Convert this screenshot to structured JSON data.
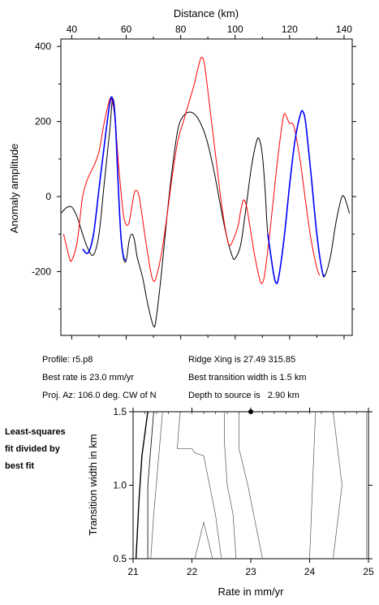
{
  "info": {
    "profile": "Profile: r5.p8",
    "best_rate": "Best rate is 23.0 mm/yr",
    "proj_az": "Proj. Az: 106.0 deg. CW of N",
    "ridge_xing": "Ridge Xing is 27.49 315.85",
    "best_width": "Best transition width is 1.5 km",
    "depth": "Depth to source is   2.90 km"
  },
  "note": [
    "Least-squares",
    "fit divided by",
    "best fit"
  ],
  "chart_data": [
    {
      "type": "line",
      "xlabel": "Distance (km)",
      "ylabel": "Anomaly amplitude",
      "xlim": [
        36,
        143
      ],
      "ylim": [
        -370,
        420
      ],
      "xticks": [
        40,
        60,
        80,
        100,
        120,
        140
      ],
      "yticks": [
        -200,
        0,
        200,
        400
      ],
      "series": [
        {
          "color": "#000000",
          "points": [
            [
              36,
              -45
            ],
            [
              38,
              -30
            ],
            [
              40,
              -28
            ],
            [
              42,
              -55
            ],
            [
              44,
              -100
            ],
            [
              46,
              -140
            ],
            [
              48,
              -155
            ],
            [
              50,
              -100
            ],
            [
              52,
              40
            ],
            [
              54,
              180
            ],
            [
              55,
              260
            ],
            [
              56,
              210
            ],
            [
              57,
              40
            ],
            [
              58,
              -100
            ],
            [
              59,
              -165
            ],
            [
              60,
              -170
            ],
            [
              61,
              -120
            ],
            [
              62,
              -100
            ],
            [
              63,
              -115
            ],
            [
              64,
              -160
            ],
            [
              66,
              -215
            ],
            [
              68,
              -290
            ],
            [
              70,
              -345
            ],
            [
              71,
              -325
            ],
            [
              73,
              -200
            ],
            [
              75,
              -50
            ],
            [
              77,
              80
            ],
            [
              79,
              180
            ],
            [
              81,
              215
            ],
            [
              83,
              225
            ],
            [
              85,
              220
            ],
            [
              87,
              200
            ],
            [
              89,
              165
            ],
            [
              91,
              110
            ],
            [
              93,
              40
            ],
            [
              95,
              -40
            ],
            [
              97,
              -110
            ],
            [
              99,
              -160
            ],
            [
              100,
              -165
            ],
            [
              102,
              -130
            ],
            [
              104,
              -30
            ],
            [
              106,
              80
            ],
            [
              108,
              150
            ],
            [
              109,
              150
            ],
            [
              110,
              110
            ],
            [
              111,
              20
            ],
            [
              112,
              -100
            ],
            [
              114,
              -200
            ],
            [
              115,
              -230
            ],
            [
              116,
              -215
            ],
            [
              118,
              -110
            ],
            [
              120,
              30
            ],
            [
              122,
              150
            ],
            [
              124,
              220
            ],
            [
              125,
              225
            ],
            [
              126,
              190
            ],
            [
              128,
              50
            ],
            [
              130,
              -100
            ],
            [
              132,
              -200
            ],
            [
              133,
              -210
            ],
            [
              135,
              -160
            ],
            [
              137,
              -70
            ],
            [
              139,
              -5
            ],
            [
              140,
              0
            ],
            [
              141,
              -20
            ],
            [
              142,
              -45
            ]
          ]
        },
        {
          "color": "#ff0000",
          "points": [
            [
              37,
              -100
            ],
            [
              39,
              -160
            ],
            [
              40,
              -170
            ],
            [
              42,
              -120
            ],
            [
              44,
              0
            ],
            [
              46,
              50
            ],
            [
              48,
              80
            ],
            [
              50,
              120
            ],
            [
              52,
              200
            ],
            [
              54,
              260
            ],
            [
              55,
              250
            ],
            [
              56,
              200
            ],
            [
              57,
              100
            ],
            [
              58,
              20
            ],
            [
              59,
              -50
            ],
            [
              60,
              -75
            ],
            [
              61,
              -70
            ],
            [
              62,
              -30
            ],
            [
              63,
              10
            ],
            [
              64,
              15
            ],
            [
              65,
              -10
            ],
            [
              67,
              -110
            ],
            [
              69,
              -200
            ],
            [
              70,
              -225
            ],
            [
              71,
              -215
            ],
            [
              73,
              -150
            ],
            [
              75,
              -50
            ],
            [
              77,
              60
            ],
            [
              79,
              150
            ],
            [
              81,
              200
            ],
            [
              83,
              250
            ],
            [
              85,
              300
            ],
            [
              87,
              360
            ],
            [
              88,
              370
            ],
            [
              89,
              340
            ],
            [
              91,
              220
            ],
            [
              93,
              100
            ],
            [
              95,
              -20
            ],
            [
              97,
              -110
            ],
            [
              98,
              -130
            ],
            [
              99,
              -120
            ],
            [
              101,
              -80
            ],
            [
              102,
              -40
            ],
            [
              103,
              -10
            ],
            [
              104,
              -20
            ],
            [
              105,
              -60
            ],
            [
              107,
              -150
            ],
            [
              109,
              -220
            ],
            [
              110,
              -230
            ],
            [
              111,
              -200
            ],
            [
              113,
              -80
            ],
            [
              115,
              60
            ],
            [
              117,
              180
            ],
            [
              118,
              220
            ],
            [
              119,
              210
            ],
            [
              120,
              195
            ],
            [
              121,
              195
            ],
            [
              122,
              175
            ],
            [
              124,
              90
            ],
            [
              126,
              -20
            ],
            [
              128,
              -120
            ],
            [
              130,
              -190
            ],
            [
              131,
              -210
            ]
          ]
        },
        {
          "color": "#0000ff",
          "points": [
            [
              44,
              -140
            ],
            [
              46,
              -150
            ],
            [
              48,
              -100
            ],
            [
              50,
              20
            ],
            [
              52,
              140
            ],
            [
              54,
              250
            ],
            [
              55,
              260
            ],
            [
              56,
              200
            ],
            [
              57,
              40
            ],
            [
              58,
              -100
            ],
            [
              59,
              -160
            ],
            [
              60,
              -170
            ],
            [
              112,
              -100
            ],
            [
              114,
              -200
            ],
            [
              115,
              -230
            ],
            [
              116,
              -215
            ],
            [
              118,
              -110
            ],
            [
              120,
              30
            ],
            [
              122,
              150
            ],
            [
              124,
              220
            ],
            [
              125,
              225
            ],
            [
              126,
              190
            ],
            [
              128,
              50
            ],
            [
              130,
              -100
            ],
            [
              132,
              -200
            ],
            [
              133,
              -210
            ]
          ]
        }
      ]
    },
    {
      "type": "contour",
      "xlabel": "Rate in mm/yr",
      "ylabel": "Transition width in km",
      "xlim": [
        21,
        25
      ],
      "ylim": [
        0.5,
        1.5
      ],
      "xticks": [
        21,
        22,
        23,
        24,
        25
      ],
      "yticks": [
        0.5,
        1.0,
        1.5
      ],
      "best_fit": [
        23.0,
        1.5
      ],
      "contours": [
        {
          "color": "#000000",
          "width": 1.4,
          "points": [
            [
              21.25,
              1.5
            ],
            [
              21.15,
              1.2
            ],
            [
              21.1,
              0.9
            ],
            [
              21.05,
              0.5
            ]
          ]
        },
        {
          "color": "#000000",
          "width": 0.8,
          "points": [
            [
              21.35,
              1.5
            ],
            [
              21.25,
              1.0
            ],
            [
              21.25,
              0.5
            ]
          ]
        },
        {
          "color": "#555555",
          "width": 0.7,
          "points": [
            [
              21.5,
              1.5
            ],
            [
              21.35,
              0.8
            ],
            [
              21.3,
              0.5
            ]
          ]
        },
        {
          "color": "#555555",
          "width": 0.7,
          "points": [
            [
              21.8,
              1.5
            ],
            [
              21.75,
              1.25
            ],
            [
              22.0,
              1.25
            ],
            [
              22.05,
              1.22
            ],
            [
              22.2,
              1.2
            ],
            [
              22.4,
              0.8
            ],
            [
              22.5,
              0.5
            ]
          ]
        },
        {
          "color": "#555555",
          "width": 0.7,
          "points": [
            [
              22.05,
              0.5
            ],
            [
              22.2,
              0.75
            ],
            [
              22.35,
              0.5
            ]
          ]
        },
        {
          "color": "#555555",
          "width": 0.7,
          "points": [
            [
              22.55,
              1.5
            ],
            [
              22.55,
              1.3
            ],
            [
              22.6,
              1.0
            ],
            [
              22.7,
              0.8
            ],
            [
              22.75,
              0.5
            ]
          ]
        },
        {
          "color": "#555555",
          "width": 0.7,
          "points": [
            [
              22.8,
              1.5
            ],
            [
              22.8,
              1.25
            ],
            [
              22.95,
              1.0
            ],
            [
              23.05,
              0.8
            ],
            [
              23.2,
              0.5
            ]
          ]
        },
        {
          "color": "#555555",
          "width": 0.7,
          "points": [
            [
              24.1,
              1.5
            ],
            [
              24.05,
              1.0
            ],
            [
              24.0,
              0.5
            ]
          ]
        },
        {
          "color": "#555555",
          "width": 0.7,
          "points": [
            [
              24.4,
              1.5
            ],
            [
              24.55,
              1.0
            ],
            [
              24.4,
              0.5
            ]
          ]
        },
        {
          "color": "#555555",
          "width": 0.7,
          "points": [
            [
              24.97,
              1.5
            ],
            [
              24.97,
              0.5
            ]
          ]
        }
      ]
    }
  ]
}
